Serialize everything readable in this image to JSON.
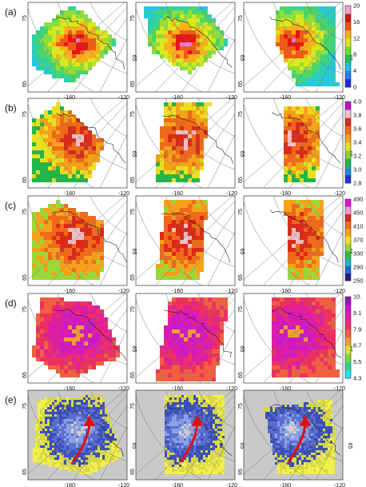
{
  "rows": [
    {
      "label": "(a)",
      "colorbar": {
        "colors": [
          "#1a2fd6",
          "#2a7cf0",
          "#18c6e0",
          "#1fbf60",
          "#6be02c",
          "#d8e820",
          "#f7b11a",
          "#ef4f16",
          "#d81414",
          "#f3a0d6"
        ],
        "ticks": [
          "20",
          "16",
          "12",
          "8",
          "4",
          "0"
        ]
      },
      "palette": [
        "#27c7e0",
        "#2fd0a8",
        "#4cd46a",
        "#8fdc3c",
        "#d8e820",
        "#f7b11a",
        "#ef5a16",
        "#e51515",
        "#f07ad2"
      ]
    },
    {
      "label": "(b)",
      "colorbar": {
        "colors": [
          "#2233c9",
          "#1d8fd8",
          "#22b64a",
          "#86d23a",
          "#e8e020",
          "#f4a21a",
          "#ee6a1a",
          "#d92b1a",
          "#f0c0c8",
          "#c010c8"
        ],
        "ticks": [
          "4.0",
          "3.8",
          "3.6",
          "3.4",
          "3.2",
          "3.0",
          "2.8"
        ]
      },
      "palette": [
        "#22b64a",
        "#e8e020",
        "#f4a21a",
        "#ee6a1a",
        "#d92b1a",
        "#f0c0c8"
      ]
    },
    {
      "label": "(c)",
      "colorbar": {
        "colors": [
          "#1b1f8a",
          "#1f66d8",
          "#1ab8c8",
          "#2fbd4a",
          "#9ad83a",
          "#f0e020",
          "#f5a21a",
          "#ef6a1a",
          "#dc2a18",
          "#f09ad8",
          "#d41ad0"
        ],
        "ticks": [
          "490",
          "450",
          "410",
          "370",
          "330",
          "290",
          "250"
        ]
      },
      "palette": [
        "#9ad83a",
        "#f5a21a",
        "#ef6a1a",
        "#dc2a18",
        "#f0c0c8"
      ]
    },
    {
      "label": "(d)",
      "colorbar": {
        "colors": [
          "#27e0f0",
          "#30d090",
          "#6fdc40",
          "#d8e030",
          "#f2a030",
          "#f06040",
          "#ee3060",
          "#e01ea0",
          "#cc18c8",
          "#9a14b8"
        ],
        "ticks": [
          "10.",
          "9.1",
          "7.9",
          "6.7",
          "5.5",
          "4.3"
        ]
      },
      "palette": [
        "#f06040",
        "#ee3060",
        "#e01ea0",
        "#cc18c8",
        "#f2a030"
      ]
    },
    {
      "label": "(e)",
      "palette": [
        "#f2ee4a",
        "#d7d74c",
        "#3b4fb8",
        "#5a6ed0",
        "#8aa0e6",
        "#cfcfd8"
      ]
    }
  ],
  "axis_labels": {
    "lat_upper": "75",
    "lat_lower": "65",
    "lon_left": "-160",
    "lon_right": "-120",
    "lat_right": "65"
  }
}
